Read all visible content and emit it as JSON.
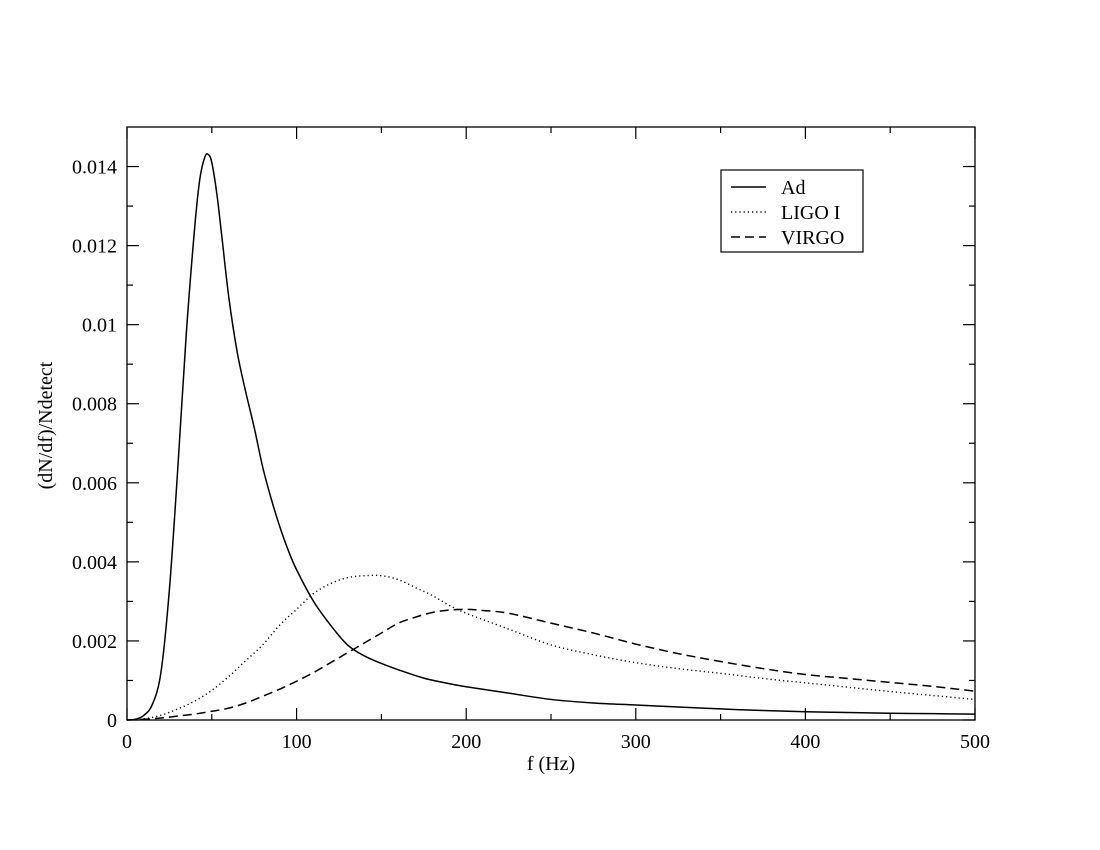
{
  "chart_data": {
    "type": "line",
    "title": "",
    "xlabel": "f (Hz)",
    "ylabel": "(dN/df)/Ndetect",
    "xlim": [
      0,
      500
    ],
    "ylim": [
      0,
      0.015
    ],
    "xticks": [
      0,
      100,
      200,
      300,
      400,
      500
    ],
    "xtick_labels": [
      "0",
      "100",
      "200",
      "300",
      "400",
      "500"
    ],
    "yticks": [
      0,
      0.002,
      0.004,
      0.006,
      0.008,
      0.01,
      0.012,
      0.014
    ],
    "ytick_labels": [
      "0",
      "0.002",
      "0.004",
      "0.006",
      "0.008",
      "0.01",
      "0.012",
      "0.014"
    ],
    "grid": false,
    "legend_position": "top-right",
    "series": [
      {
        "name": "Ad",
        "style": "solid",
        "color": "#000000",
        "x": [
          0,
          5,
          10,
          15,
          20,
          25,
          30,
          35,
          40,
          43,
          46,
          48,
          50,
          53,
          56,
          60,
          65,
          70,
          75,
          80,
          85,
          90,
          95,
          100,
          110,
          120,
          130,
          140,
          150,
          160,
          175,
          190,
          200,
          225,
          250,
          275,
          300,
          325,
          350,
          375,
          400,
          425,
          450,
          475,
          500
        ],
        "y": [
          0,
          2e-05,
          0.00012,
          0.0004,
          0.0012,
          0.0033,
          0.0064,
          0.0098,
          0.0125,
          0.0137,
          0.01425,
          0.0143,
          0.0141,
          0.0133,
          0.0122,
          0.0107,
          0.0093,
          0.0083,
          0.0074,
          0.0064,
          0.0056,
          0.0049,
          0.0043,
          0.0038,
          0.003,
          0.0024,
          0.0019,
          0.00162,
          0.00143,
          0.00127,
          0.00106,
          0.00092,
          0.00084,
          0.00068,
          0.00052,
          0.00043,
          0.00038,
          0.00033,
          0.00028,
          0.00024,
          0.00021,
          0.00019,
          0.00017,
          0.00016,
          0.00015
        ]
      },
      {
        "name": "LIGO I",
        "style": "dotted",
        "color": "#000000",
        "x": [
          0,
          10,
          20,
          30,
          40,
          50,
          60,
          70,
          80,
          90,
          100,
          110,
          120,
          130,
          140,
          150,
          160,
          170,
          180,
          190,
          200,
          225,
          250,
          275,
          300,
          325,
          350,
          375,
          400,
          425,
          450,
          475,
          500
        ],
        "y": [
          0,
          3e-05,
          0.00012,
          0.00028,
          0.00048,
          0.00075,
          0.0011,
          0.0015,
          0.0019,
          0.0024,
          0.0028,
          0.0032,
          0.00345,
          0.0036,
          0.00365,
          0.00365,
          0.00355,
          0.00335,
          0.00315,
          0.0029,
          0.0027,
          0.0023,
          0.0019,
          0.00165,
          0.00145,
          0.0013,
          0.00118,
          0.00105,
          0.00094,
          0.00083,
          0.00072,
          0.00062,
          0.00052
        ]
      },
      {
        "name": "VIRGO",
        "style": "dashed",
        "color": "#000000",
        "x": [
          0,
          10,
          20,
          30,
          40,
          50,
          60,
          70,
          80,
          90,
          100,
          110,
          120,
          130,
          140,
          150,
          160,
          170,
          180,
          190,
          200,
          210,
          225,
          250,
          275,
          300,
          325,
          350,
          375,
          400,
          425,
          450,
          475,
          500
        ],
        "y": [
          0,
          2e-05,
          5e-05,
          0.0001,
          0.00015,
          0.00022,
          0.0003,
          0.00043,
          0.0006,
          0.00078,
          0.00098,
          0.0012,
          0.00145,
          0.0017,
          0.00195,
          0.0022,
          0.00245,
          0.0026,
          0.00272,
          0.00278,
          0.0028,
          0.00277,
          0.0027,
          0.00245,
          0.0022,
          0.00192,
          0.00168,
          0.00148,
          0.0013,
          0.00115,
          0.00105,
          0.00095,
          0.00085,
          0.00073
        ]
      }
    ]
  }
}
